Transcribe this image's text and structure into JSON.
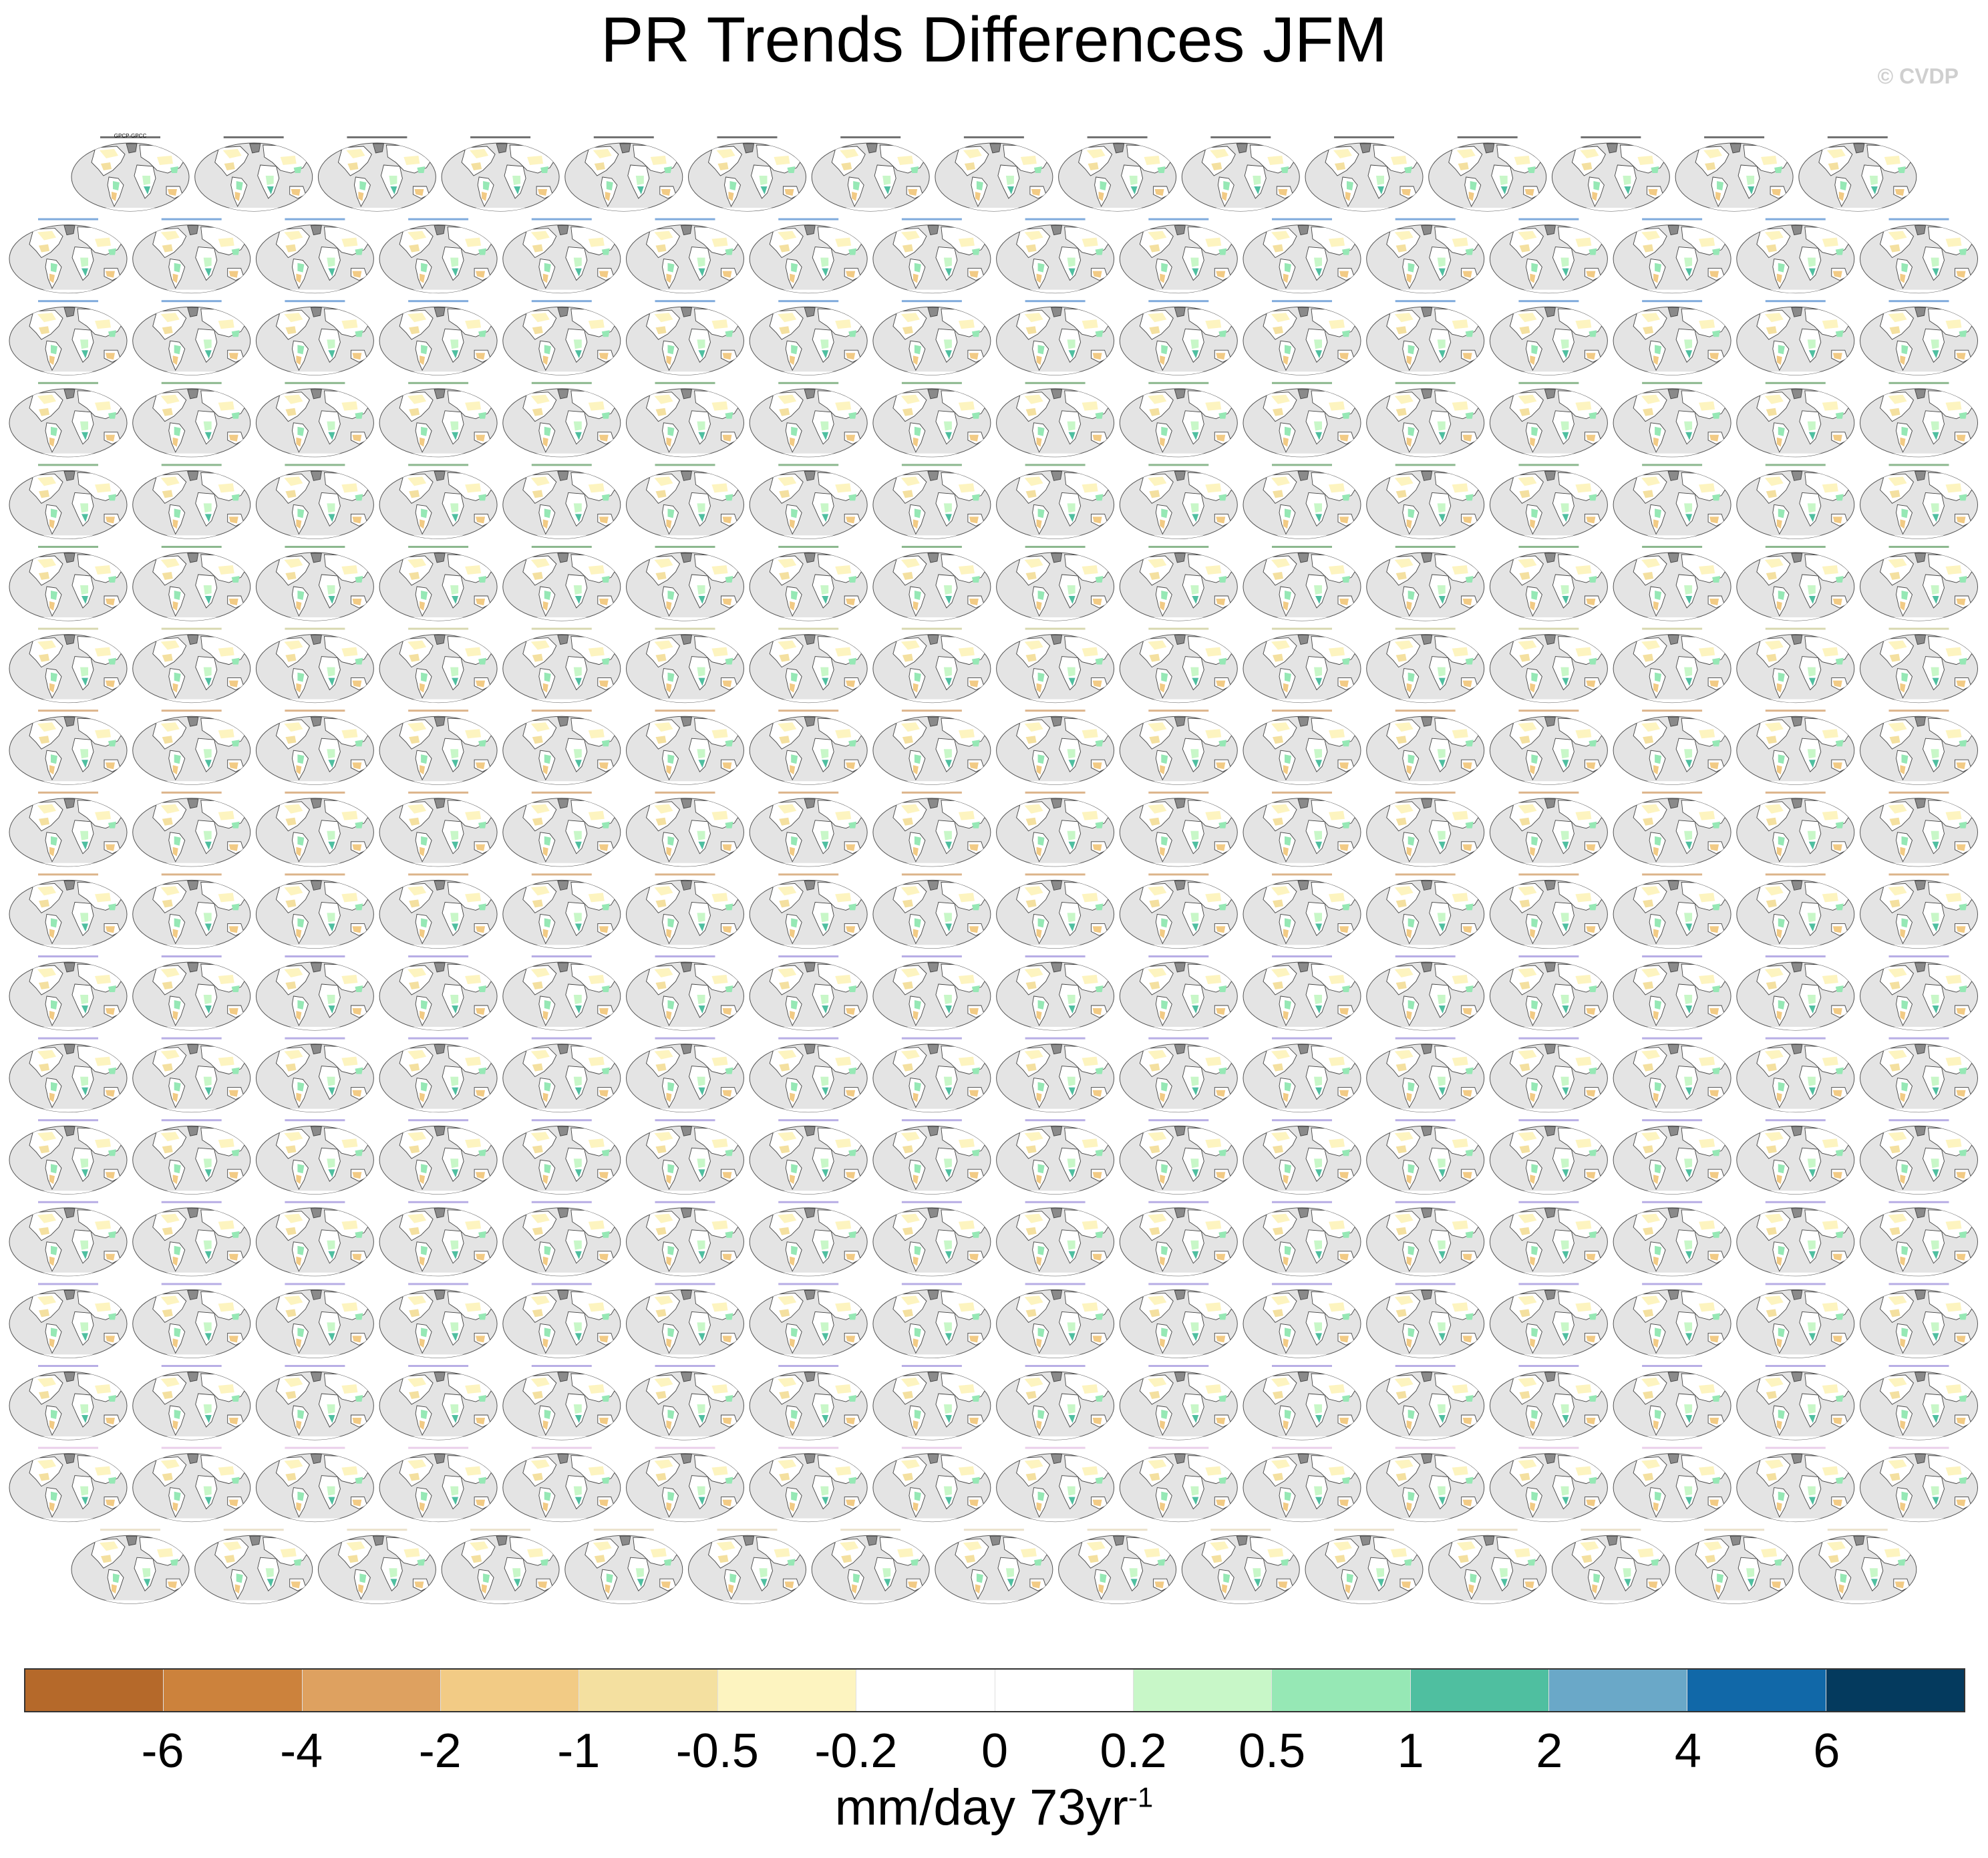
{
  "title": "PR Trends Differences JFM",
  "watermark": "© CVDP",
  "units": {
    "main": "mm/day 73yr",
    "exponent": "-1"
  },
  "chart_data": {
    "type": "heatmap",
    "title": "PR Trends Differences JFM",
    "description_of_panels": "Grid of global map panels (robinson projection) of JFM precipitation trend differences vs GPCC for each ensemble member",
    "panel_rows": [
      {
        "count": 15,
        "first_label": "GPCP-GPCC",
        "color": "#000000"
      },
      {
        "count": 16,
        "color": "#1565c0"
      },
      {
        "count": 16,
        "color": "#1565c0"
      },
      {
        "count": 16,
        "color": "#2e7d32"
      },
      {
        "count": 16,
        "color": "#2e7d32"
      },
      {
        "count": 16,
        "color": "#2e7d32"
      },
      {
        "count": 16,
        "color": "#b8b870"
      },
      {
        "count": 16,
        "color": "#c0772a"
      },
      {
        "count": 16,
        "color": "#c0772a"
      },
      {
        "count": 16,
        "color": "#c0772a"
      },
      {
        "count": 16,
        "color": "#7e6bd0"
      },
      {
        "count": 16,
        "color": "#7e6bd0"
      },
      {
        "count": 16,
        "color": "#7e6bd0"
      },
      {
        "count": 16,
        "color": "#7e6bd0"
      },
      {
        "count": 16,
        "color": "#7e6bd0"
      },
      {
        "count": 16,
        "color": "#7e6bd0"
      },
      {
        "count": 16,
        "color": "#d8a8d8"
      },
      {
        "count": 15,
        "color": "#d8c8a0"
      }
    ],
    "colorbar": {
      "ticks": [
        "-6",
        "-4",
        "-2",
        "-1",
        "-0.5",
        "-0.2",
        "0",
        "0.2",
        "0.5",
        "1",
        "2",
        "4",
        "6"
      ],
      "colors": [
        "#b5692a",
        "#cc823c",
        "#dea160",
        "#f2cb85",
        "#f4e0a0",
        "#fdf4c0",
        "#ffffff",
        "#ffffff",
        "#c8f7c8",
        "#96e8b5",
        "#4fbfa0",
        "#6aa8c8",
        "#1168a8",
        "#043a5e"
      ],
      "label": "mm/day 73yr-1"
    }
  }
}
